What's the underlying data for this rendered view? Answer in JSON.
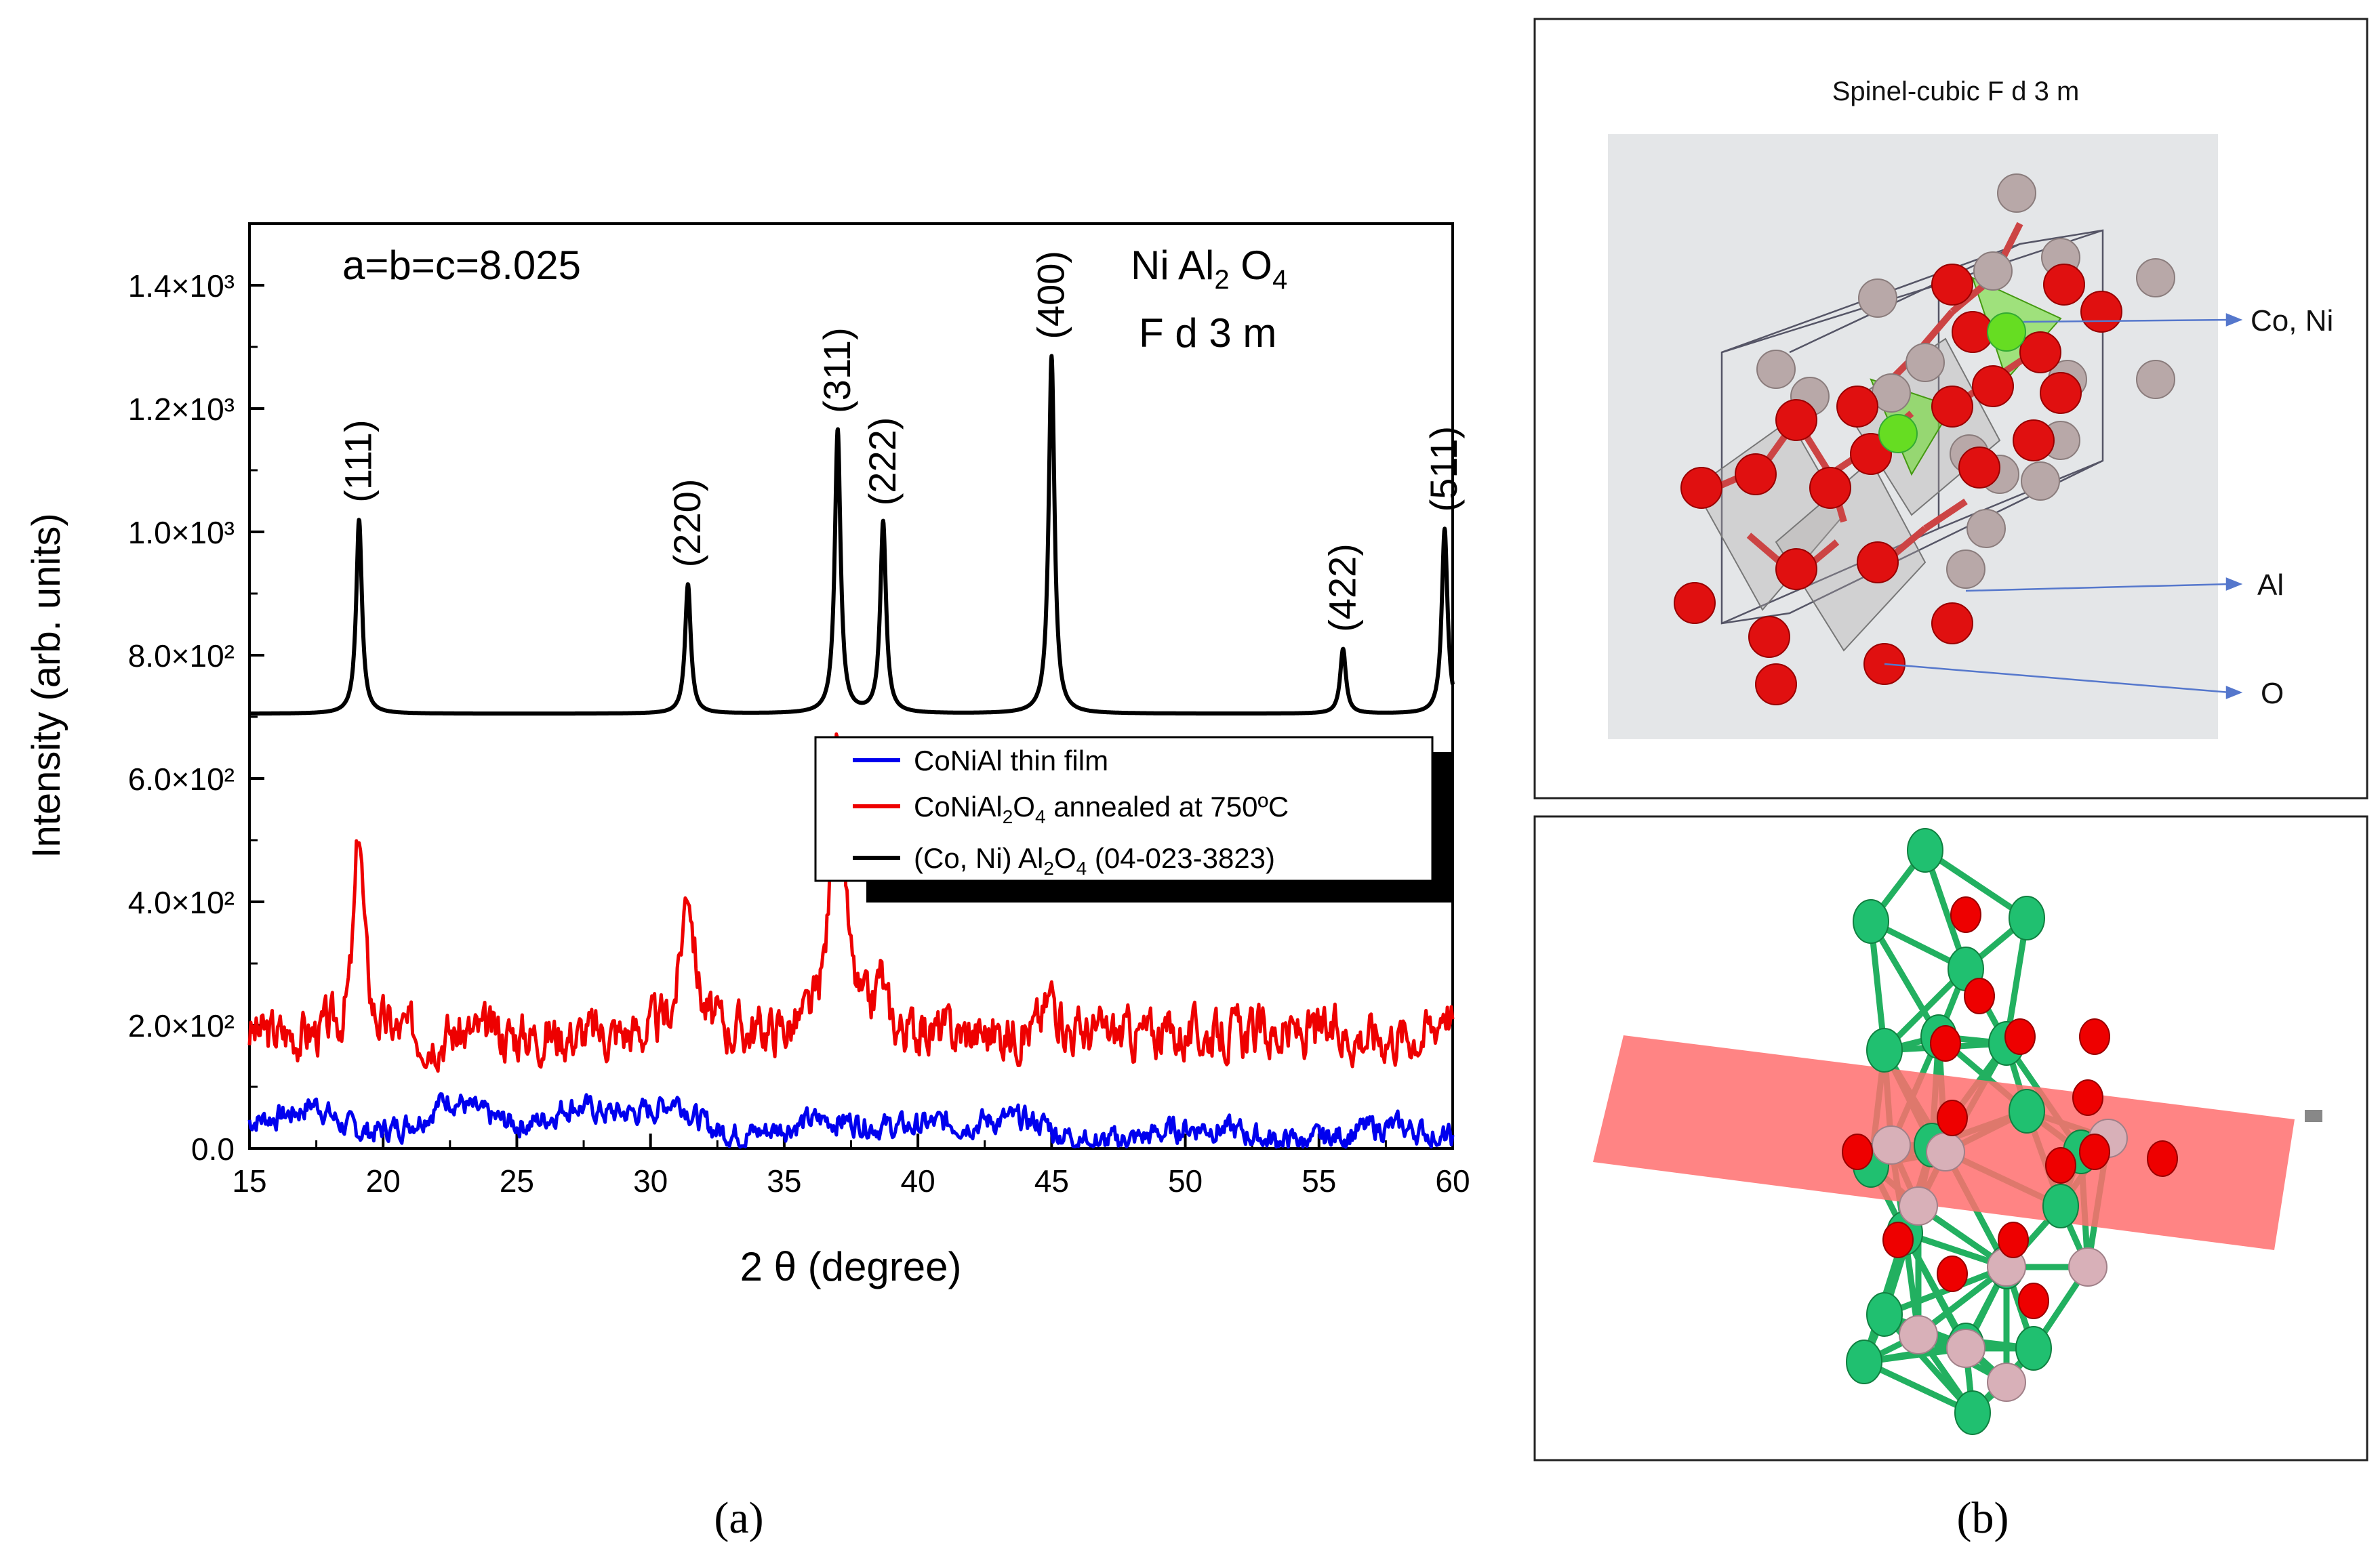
{
  "panels": {
    "a_label": "(a)",
    "b_label": "(b)"
  },
  "structure": {
    "title": "Spinel-cubic F d 3 m",
    "labels": {
      "co_ni": "Co, Ni",
      "al": "Al",
      "o": "O"
    },
    "colors": {
      "oxygen": "#e01010",
      "metal": "#b8a8a8",
      "tetra": "#66dd22",
      "bond2": "#22bb66",
      "plane": "#ff7b7b"
    }
  },
  "chart_data": {
    "type": "line",
    "xlabel": "2 θ (degree)",
    "ylabel": "Intensity (arb. units)",
    "xlim": [
      15,
      60
    ],
    "ylim": [
      0,
      1500
    ],
    "xticks": [
      15,
      20,
      25,
      30,
      35,
      40,
      45,
      50,
      55,
      60
    ],
    "yticks": [
      {
        "value": 0,
        "label": "0.0"
      },
      {
        "value": 200,
        "label": "2.0×10²"
      },
      {
        "value": 400,
        "label": "4.0×10²"
      },
      {
        "value": 600,
        "label": "6.0×10²"
      },
      {
        "value": 800,
        "label": "8.0×10²"
      },
      {
        "value": 1000,
        "label": "1.0×10³"
      },
      {
        "value": 1200,
        "label": "1.2×10³"
      },
      {
        "value": 1400,
        "label": "1.4×10³"
      }
    ],
    "annotations": {
      "lattice": "a=b=c=8.025",
      "formula_main": "Ni Al",
      "formula_sub1": "2",
      "formula_mid": " O",
      "formula_sub2": "4",
      "space_group": "F d 3 m"
    },
    "reference_peaks": [
      {
        "label": "(111)",
        "x": 19.1,
        "y": 1020
      },
      {
        "label": "(220)",
        "x": 31.4,
        "y": 915
      },
      {
        "label": "(311)",
        "x": 37.0,
        "y": 1165
      },
      {
        "label": "(222)",
        "x": 38.7,
        "y": 1015
      },
      {
        "label": "(400)",
        "x": 45.0,
        "y": 1285
      },
      {
        "label": "(422)",
        "x": 55.9,
        "y": 810
      },
      {
        "label": "(511)",
        "x": 59.7,
        "y": 1005
      }
    ],
    "series": [
      {
        "name": "CoNiAl thin film",
        "legend_sub": "",
        "legend_sup": "",
        "legend_tail": "",
        "color": "#0000ee",
        "baseline": 30,
        "peaks": [
          [
            17.5,
            40,
            0.8
          ],
          [
            22.5,
            35,
            0.8
          ],
          [
            27,
            45,
            1.2
          ],
          [
            31,
            40,
            0.7
          ],
          [
            40.5,
            20,
            1.5
          ]
        ],
        "noise": 15,
        "seed": 7,
        "start": 40
      },
      {
        "name": "CoNiAl",
        "legend_sub": "2",
        "legend_mid": "O",
        "legend_sub2": "4",
        "legend_tail": " annealed at 750ºC",
        "color": "#ee0000",
        "baseline": 185,
        "peaks": [
          [
            19.1,
            330,
            0.22
          ],
          [
            31.4,
            245,
            0.3
          ],
          [
            37.0,
            485,
            0.3
          ],
          [
            38.6,
            85,
            0.2
          ],
          [
            45.0,
            65,
            0.3
          ],
          [
            59.7,
            55,
            0.25
          ]
        ],
        "noise": 30,
        "seed": 3,
        "start": 175
      },
      {
        "name": "(Co, Ni) Al",
        "legend_sub": "2",
        "legend_mid": "O",
        "legend_sub2": "4",
        "legend_tail": " (04-023-3823)",
        "color": "#000000",
        "baseline": 705
      }
    ]
  }
}
